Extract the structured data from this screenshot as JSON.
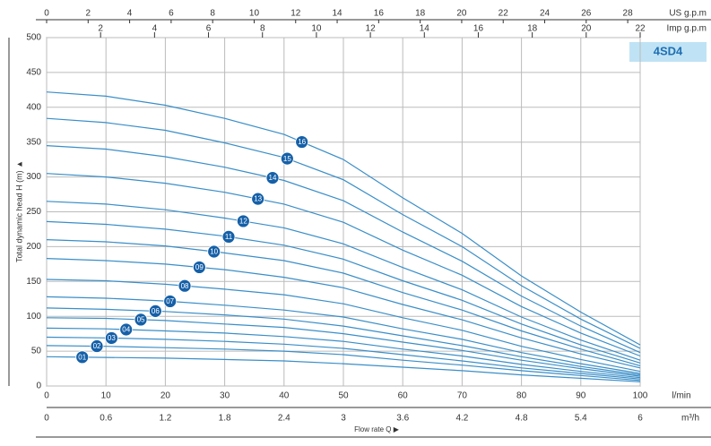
{
  "chart_data": {
    "type": "line",
    "title": "4SD4",
    "xlabel": "l/min",
    "ylabel": "Total dynamic head H (m) ▲",
    "flow_label": "Flow rate Q ▶",
    "x": [
      0,
      10,
      20,
      30,
      40,
      50,
      60,
      70,
      80,
      90,
      100
    ],
    "xlim": [
      0,
      100
    ],
    "xticks": [
      0,
      10,
      20,
      30,
      40,
      50,
      60,
      70,
      80,
      90,
      100
    ],
    "ylim": [
      0,
      500
    ],
    "yticks": [
      0,
      50,
      100,
      150,
      200,
      250,
      300,
      350,
      400,
      450,
      500
    ],
    "grid": true,
    "top_axes": [
      {
        "label": "US g.p.m",
        "lim": [
          0,
          28.6
        ],
        "ticks": [
          0,
          2,
          4,
          6,
          8,
          10,
          12,
          14,
          16,
          18,
          20,
          22,
          24,
          26,
          28
        ]
      },
      {
        "label": "Imp g.p.m",
        "lim": [
          0,
          22
        ],
        "ticks": [
          2,
          4,
          6,
          8,
          10,
          12,
          14,
          16,
          18,
          20,
          22
        ]
      }
    ],
    "bottom_axis": {
      "label": "m³/h",
      "lim": [
        0,
        6
      ],
      "ticks": [
        0,
        0.6,
        1.2,
        1.8,
        2.4,
        3,
        3.6,
        4.2,
        4.8,
        5.4,
        6
      ]
    },
    "series": [
      {
        "name": "01",
        "color": "#3a8ec8",
        "values": [
          42,
          41,
          40,
          38,
          36,
          32,
          27,
          22,
          16,
          11,
          6
        ]
      },
      {
        "name": "02",
        "color": "#3a8ec8",
        "values": [
          58,
          57,
          55,
          53,
          50,
          45,
          37,
          30,
          22,
          15,
          8
        ]
      },
      {
        "name": "03",
        "color": "#3a8ec8",
        "values": [
          70,
          69,
          67,
          64,
          60,
          54,
          45,
          36,
          26,
          18,
          10
        ]
      },
      {
        "name": "04",
        "color": "#3a8ec8",
        "values": [
          83,
          82,
          79,
          76,
          71,
          64,
          53,
          43,
          31,
          21,
          12
        ]
      },
      {
        "name": "05",
        "color": "#3a8ec8",
        "values": [
          98,
          97,
          94,
          89,
          84,
          75,
          63,
          51,
          37,
          25,
          14
        ]
      },
      {
        "name": "06",
        "color": "#3a8ec8",
        "values": [
          112,
          110,
          107,
          102,
          96,
          86,
          72,
          58,
          42,
          28,
          16
        ]
      },
      {
        "name": "07",
        "color": "#3a8ec8",
        "values": [
          128,
          126,
          122,
          116,
          109,
          99,
          82,
          67,
          48,
          32,
          18
        ]
      },
      {
        "name": "08",
        "color": "#3a8ec8",
        "values": [
          153,
          151,
          146,
          139,
          131,
          118,
          98,
          80,
          57,
          38,
          21
        ]
      },
      {
        "name": "09",
        "color": "#3a8ec8",
        "values": [
          183,
          180,
          175,
          167,
          156,
          141,
          117,
          95,
          69,
          46,
          26
        ]
      },
      {
        "name": "10",
        "color": "#3a8ec8",
        "values": [
          210,
          207,
          201,
          191,
          180,
          162,
          134,
          109,
          79,
          53,
          29
        ]
      },
      {
        "name": "11",
        "color": "#3a8ec8",
        "values": [
          236,
          232,
          225,
          215,
          202,
          182,
          151,
          123,
          89,
          59,
          33
        ]
      },
      {
        "name": "12",
        "color": "#3a8ec8",
        "values": [
          265,
          261,
          253,
          241,
          227,
          204,
          170,
          138,
          99,
          66,
          37
        ]
      },
      {
        "name": "13",
        "color": "#3a8ec8",
        "values": [
          305,
          300,
          291,
          278,
          261,
          235,
          195,
          159,
          114,
          76,
          43
        ]
      },
      {
        "name": "14",
        "color": "#3a8ec8",
        "values": [
          345,
          340,
          329,
          314,
          295,
          266,
          221,
          179,
          129,
          86,
          48
        ]
      },
      {
        "name": "15",
        "color": "#3a8ec8",
        "values": [
          384,
          378,
          367,
          349,
          328,
          296,
          246,
          200,
          144,
          96,
          54
        ]
      },
      {
        "name": "16",
        "color": "#3a8ec8",
        "values": [
          422,
          416,
          403,
          384,
          361,
          325,
          270,
          219,
          158,
          106,
          59
        ]
      }
    ]
  }
}
